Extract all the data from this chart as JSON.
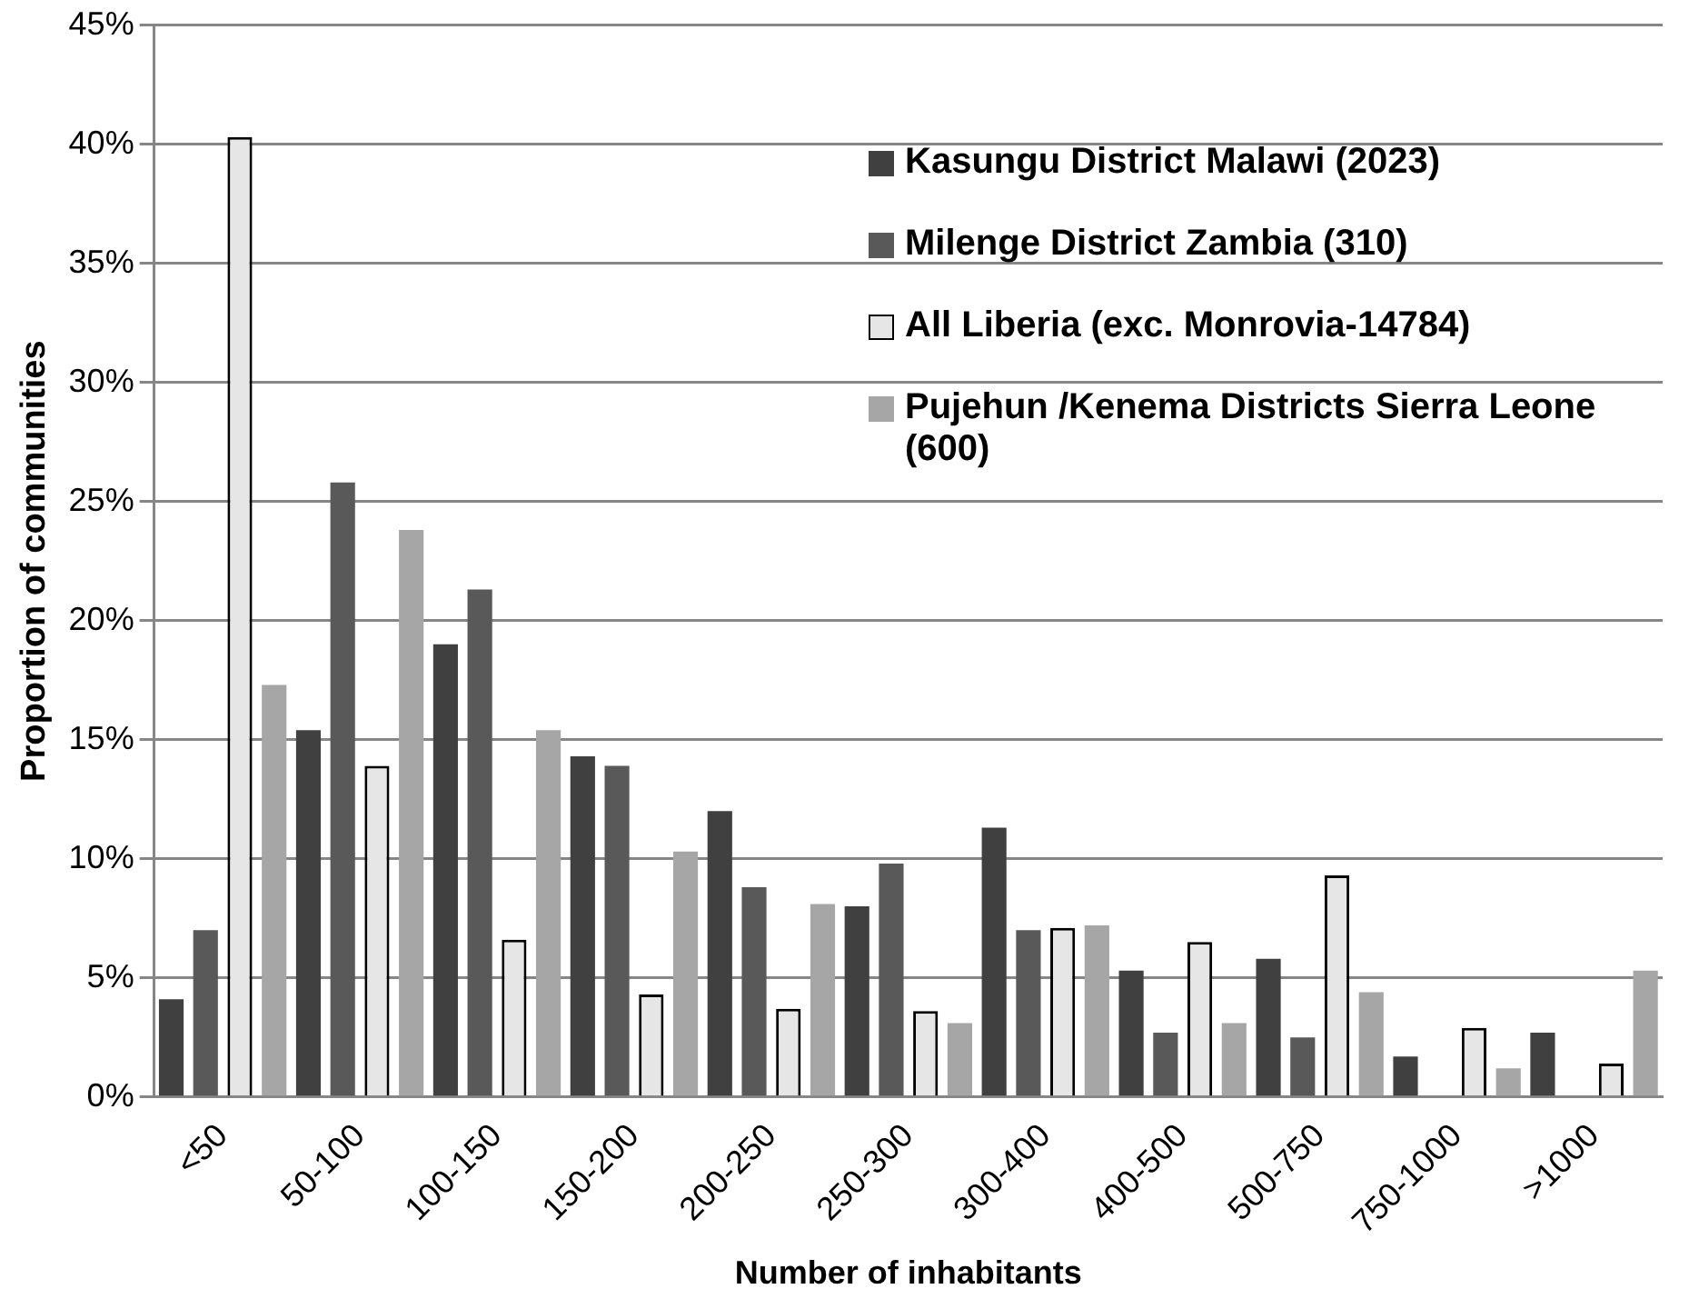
{
  "chart_data": {
    "type": "bar",
    "xlabel": "Number of inhabitants",
    "ylabel": "Proportion of communities",
    "categories": [
      "<50",
      "50-100",
      "100-150",
      "150-200",
      "200-250",
      "250-300",
      "300-400",
      "400-500",
      "500-750",
      "750-1000",
      ">1000"
    ],
    "series": [
      {
        "name": "Kasungu District Malawi (2023)",
        "color": "#404040",
        "values": [
          4.1,
          15.4,
          19.0,
          14.3,
          12.0,
          8.0,
          11.3,
          5.3,
          5.8,
          1.7,
          2.7
        ]
      },
      {
        "name": "Milenge District Zambia (310)",
        "color": "#595959",
        "values": [
          7.0,
          25.8,
          21.3,
          13.9,
          8.8,
          9.8,
          7.0,
          2.7,
          2.5,
          0,
          0
        ]
      },
      {
        "name": "All Liberia (exc. Monrovia-14784)",
        "color": "#e6e6e6",
        "values": [
          40.3,
          13.9,
          6.6,
          4.3,
          3.7,
          3.6,
          7.1,
          6.5,
          9.3,
          2.9,
          1.4
        ]
      },
      {
        "name": "Pujehun /Kenema Districts  Sierra Leone (600)",
        "color": "#a6a6a6",
        "values": [
          17.3,
          23.8,
          15.4,
          10.3,
          8.1,
          3.1,
          7.2,
          3.1,
          4.4,
          1.2,
          5.3
        ]
      }
    ],
    "ylim": [
      0,
      45
    ],
    "yticks": [
      {
        "value": 0,
        "label": "0%"
      },
      {
        "value": 5,
        "label": "5%"
      },
      {
        "value": 10,
        "label": "10%"
      },
      {
        "value": 15,
        "label": "15%"
      },
      {
        "value": 20,
        "label": "20%"
      },
      {
        "value": 25,
        "label": "25%"
      },
      {
        "value": 30,
        "label": "30%"
      },
      {
        "value": 35,
        "label": "35%"
      },
      {
        "value": 40,
        "label": "40%"
      },
      {
        "value": 45,
        "label": "45%"
      }
    ],
    "grid": "y",
    "legend": "top right"
  }
}
